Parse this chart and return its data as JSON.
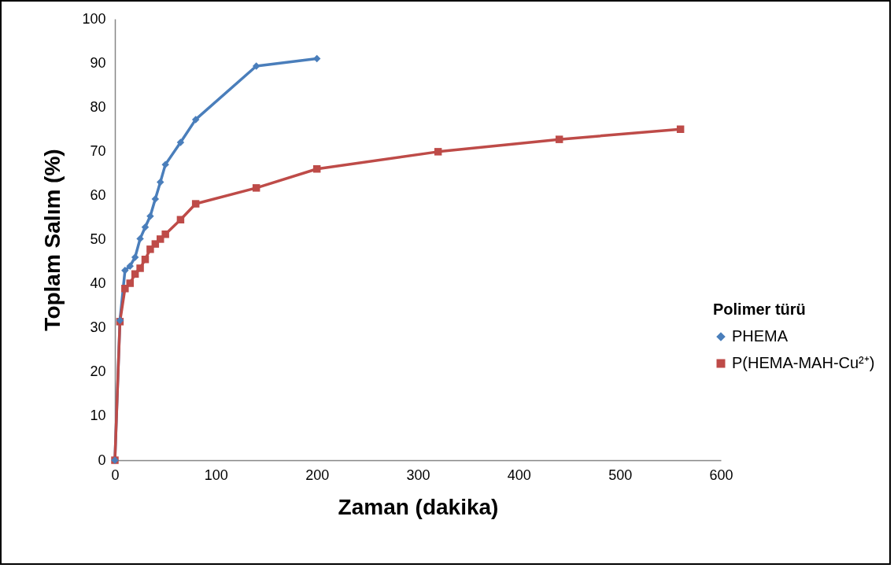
{
  "chart_data": {
    "type": "line",
    "xlabel": "Zaman (dakika)",
    "ylabel": "Toplam Salım (%)",
    "legend_title": "Polimer türü",
    "legend": "right",
    "xlim": [
      0,
      600
    ],
    "xticks": [
      0,
      100,
      200,
      300,
      400,
      500,
      600
    ],
    "ylim": [
      0,
      100
    ],
    "yticks": [
      0,
      10,
      20,
      30,
      40,
      50,
      60,
      70,
      80,
      90,
      100
    ],
    "grid": false,
    "line_style": "solid",
    "series": [
      {
        "name": "PHEMA",
        "color": "#4a7ebb",
        "marker": "diamond",
        "x": [
          0,
          5,
          10,
          15,
          20,
          25,
          30,
          35,
          40,
          45,
          50,
          65,
          80,
          140,
          200
        ],
        "values": [
          0,
          31.7,
          43,
          44,
          46,
          50.2,
          52.8,
          55.3,
          59.2,
          63,
          67,
          72,
          77.2,
          89.3,
          91
        ]
      },
      {
        "name": "P(HEMA-MAH-Cu²⁺)",
        "color": "#be4b48",
        "marker": "square",
        "x": [
          0,
          5,
          10,
          15,
          20,
          25,
          30,
          35,
          40,
          45,
          50,
          65,
          80,
          140,
          200,
          320,
          440,
          560
        ],
        "values": [
          0,
          31.4,
          38.9,
          40.1,
          42.2,
          43.5,
          45.5,
          47.8,
          49,
          50.1,
          51.2,
          54.5,
          58.1,
          61.7,
          66,
          69.9,
          72.7,
          75
        ]
      }
    ]
  }
}
